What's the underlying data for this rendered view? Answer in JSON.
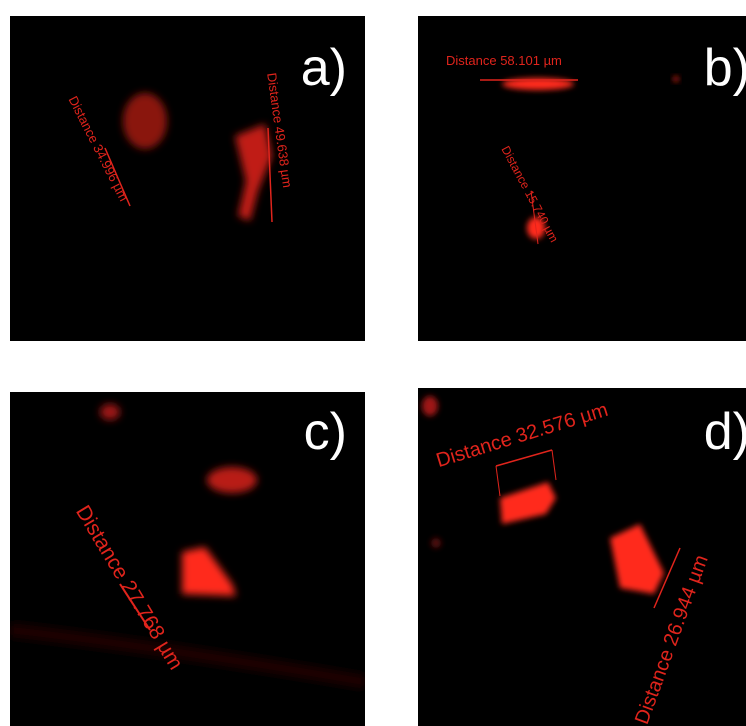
{
  "panels": [
    {
      "label": "a)",
      "measurements": [
        "Distance 34.996 µm",
        "Distance 49.638 µm"
      ]
    },
    {
      "label": "b)",
      "measurements": [
        "Distance 58.101 µm",
        "Distance 15.740 µm"
      ]
    },
    {
      "label": "c)",
      "measurements": [
        "Distance 27.768 µm"
      ]
    },
    {
      "label": "d)",
      "measurements": [
        "Distance 32.576 µm",
        "Distance 26.944 µm"
      ]
    }
  ],
  "colors": {
    "fluorescence": "#ff2a1a",
    "annotation": "#e0241c",
    "background": "#000000",
    "panel_label": "#ffffff"
  }
}
